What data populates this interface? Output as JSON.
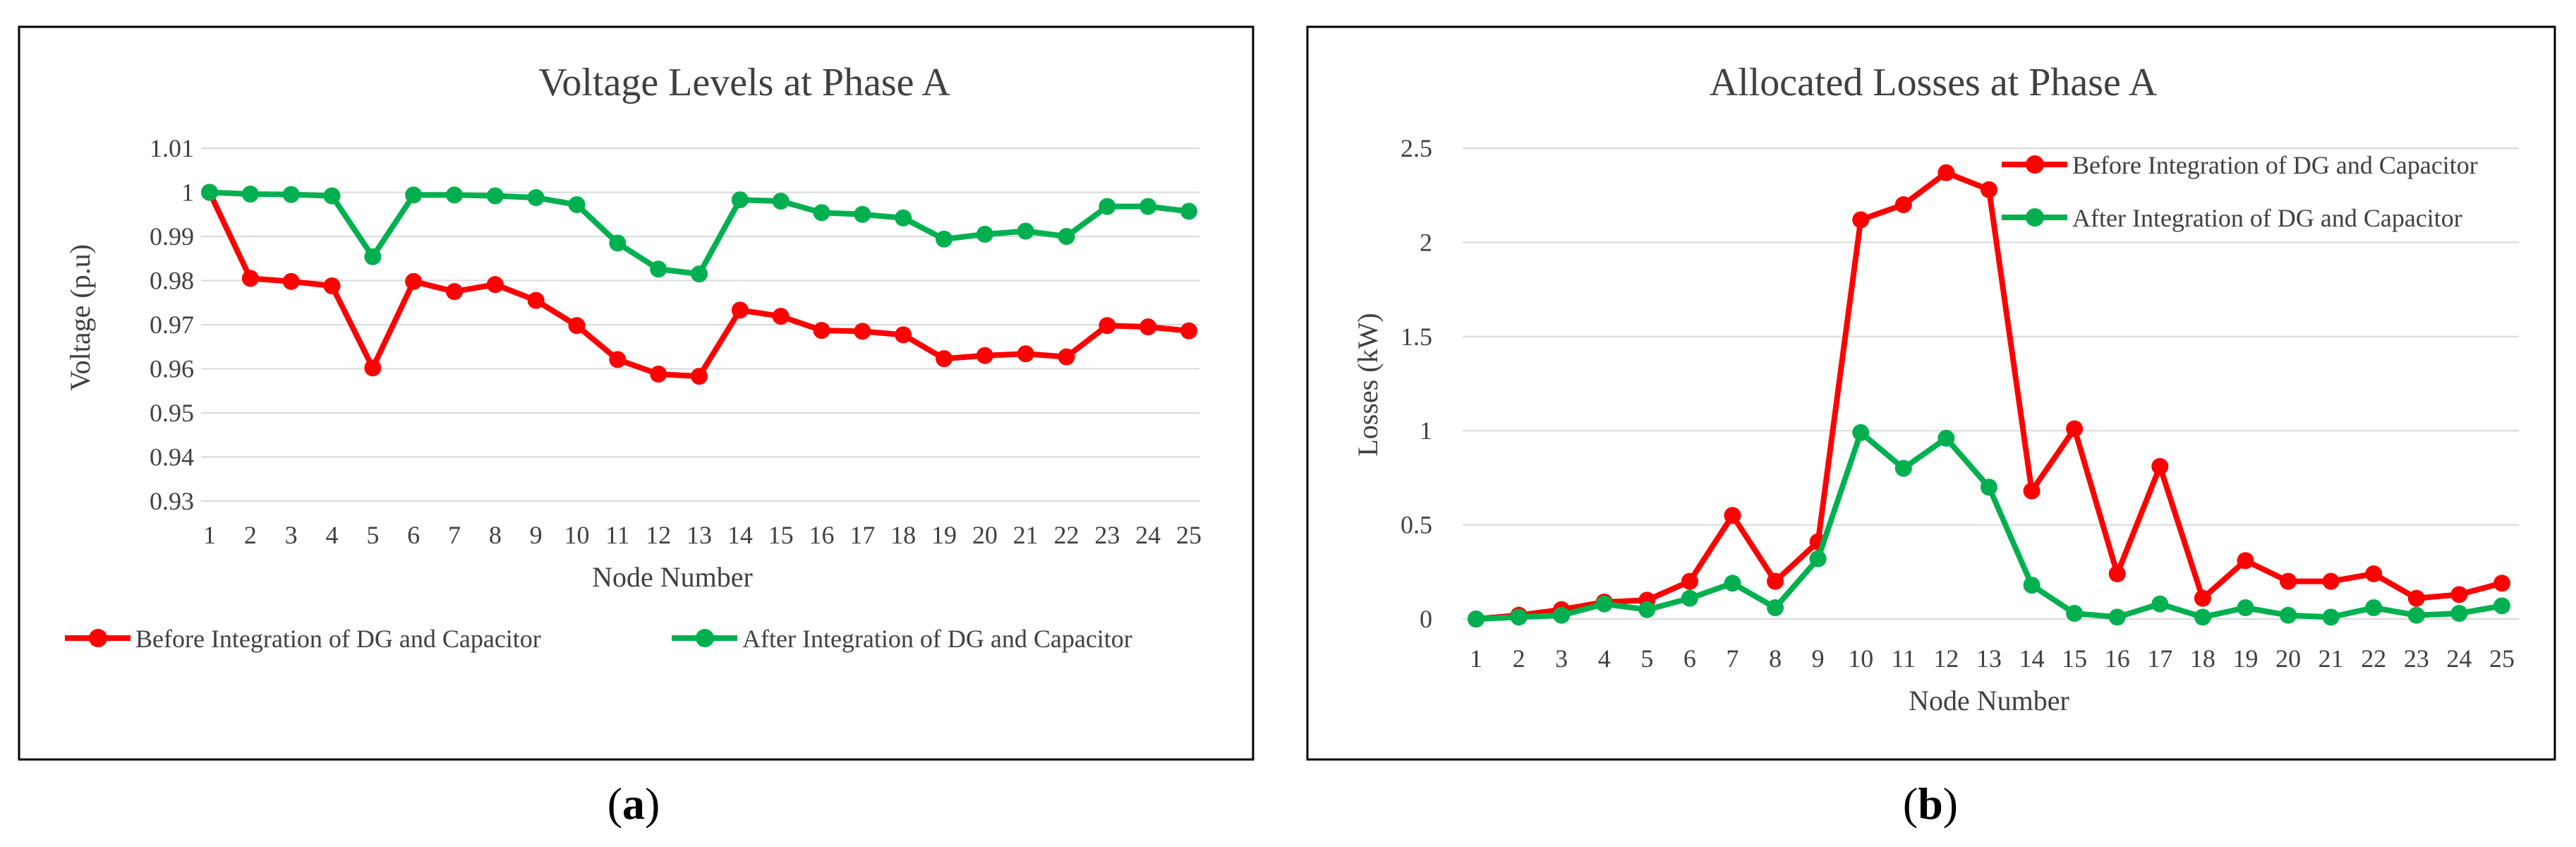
{
  "chart_data": [
    {
      "id": "a",
      "type": "line",
      "title": "Voltage  Levels at Phase A",
      "xlabel": "Node Number",
      "ylabel": "Voltage (p.u)",
      "ylim": [
        0.93,
        1.01
      ],
      "yticks": [
        "0.93",
        "0.94",
        "0.95",
        "0.96",
        "0.97",
        "0.98",
        "0.99",
        "1",
        "1.01"
      ],
      "ytick_values": [
        0.93,
        0.94,
        0.95,
        0.96,
        0.97,
        0.98,
        0.99,
        1.0,
        1.01
      ],
      "grid": true,
      "legend_position": "bottom",
      "categories": [
        "1",
        "2",
        "3",
        "4",
        "5",
        "6",
        "7",
        "8",
        "9",
        "10",
        "11",
        "12",
        "13",
        "14",
        "15",
        "16",
        "17",
        "18",
        "19",
        "20",
        "21",
        "22",
        "23",
        "24",
        "25"
      ],
      "series": [
        {
          "name": "Before Integration of DG and Capacitor",
          "color": "#ff0000",
          "values": [
            1.0,
            0.9805,
            0.9798,
            0.9788,
            0.9602,
            0.9798,
            0.9775,
            0.9791,
            0.9755,
            0.9698,
            0.9621,
            0.9588,
            0.9583,
            0.9733,
            0.9719,
            0.9687,
            0.9685,
            0.9677,
            0.9623,
            0.963,
            0.9634,
            0.9627,
            0.9698,
            0.9695,
            0.9686
          ]
        },
        {
          "name": "After Integration of DG and Capacitor",
          "color": "#00b050",
          "values": [
            1.0,
            0.9996,
            0.9995,
            0.9992,
            0.9854,
            0.9994,
            0.9994,
            0.9992,
            0.9988,
            0.9972,
            0.9885,
            0.9826,
            0.9815,
            0.9983,
            0.998,
            0.9954,
            0.995,
            0.9942,
            0.9894,
            0.9905,
            0.9912,
            0.99,
            0.9968,
            0.9968,
            0.9957
          ]
        }
      ]
    },
    {
      "id": "b",
      "type": "line",
      "title": "Allocated  Losses at Phase A",
      "xlabel": "Node Number",
      "ylabel": "Losses (kW)",
      "ylim": [
        0,
        2.5
      ],
      "yticks": [
        "0",
        "0.5",
        "1",
        "1.5",
        "2",
        "2.5"
      ],
      "ytick_values": [
        0,
        0.5,
        1,
        1.5,
        2,
        2.5
      ],
      "grid": true,
      "legend_position": "top-right",
      "categories": [
        "1",
        "2",
        "3",
        "4",
        "5",
        "6",
        "7",
        "8",
        "9",
        "10",
        "11",
        "12",
        "13",
        "14",
        "15",
        "16",
        "17",
        "18",
        "19",
        "20",
        "21",
        "22",
        "23",
        "24",
        "25"
      ],
      "series": [
        {
          "name": "Before Integration of DG and Capacitor",
          "color": "#ff0000",
          "values": [
            0.0,
            0.02,
            0.05,
            0.09,
            0.1,
            0.2,
            0.55,
            0.2,
            0.41,
            2.12,
            2.2,
            2.37,
            2.28,
            0.68,
            1.01,
            0.24,
            0.81,
            0.11,
            0.31,
            0.2,
            0.2,
            0.24,
            0.11,
            0.13,
            0.19
          ]
        },
        {
          "name": "After Integration of DG and Capacitor",
          "color": "#00b050",
          "values": [
            0.0,
            0.01,
            0.02,
            0.08,
            0.05,
            0.11,
            0.19,
            0.06,
            0.32,
            0.99,
            0.8,
            0.96,
            0.7,
            0.18,
            0.03,
            0.01,
            0.08,
            0.01,
            0.06,
            0.02,
            0.01,
            0.06,
            0.02,
            0.03,
            0.07
          ]
        }
      ]
    }
  ],
  "captions": {
    "a": {
      "open": "(",
      "letter": "a",
      "close": ")"
    },
    "b": {
      "open": "(",
      "letter": "b",
      "close": ")"
    }
  }
}
